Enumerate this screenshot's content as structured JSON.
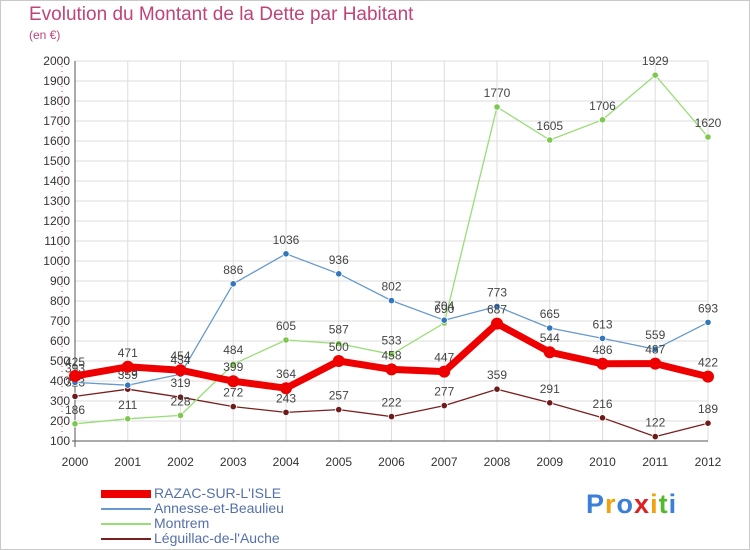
{
  "colors": {
    "title": "#c0437a",
    "grid": "#dddddd",
    "axis": "#555555"
  },
  "chart_data": {
    "type": "line",
    "title": "Evolution du Montant de la Dette par Habitant",
    "subtitle": "(en €)",
    "xlabel": "",
    "ylabel": "",
    "ylim": [
      100,
      2000
    ],
    "yticks": [
      100,
      200,
      300,
      400,
      500,
      600,
      700,
      800,
      900,
      1000,
      1100,
      1200,
      1300,
      1400,
      1500,
      1600,
      1700,
      1800,
      1900,
      2000
    ],
    "grid": true,
    "legend": "bottom-left",
    "x": [
      "2000",
      "2001",
      "2002",
      "2003",
      "2004",
      "2005",
      "2006",
      "2007",
      "2008",
      "2009",
      "2010",
      "2011",
      "2012"
    ],
    "series": [
      {
        "name": "Léguillac-de-l'Auche",
        "color": "#7a1f1f",
        "width": 1.3,
        "marker": "#6e1a1a",
        "values": [
          323,
          359,
          319,
          272,
          243,
          257,
          222,
          277,
          359,
          291,
          216,
          122,
          189
        ]
      },
      {
        "name": "Montrem",
        "color": "#99dd77",
        "width": 1.3,
        "marker": "#7ec850",
        "values": [
          186,
          211,
          228,
          484,
          605,
          587,
          533,
          690,
          1770,
          1605,
          1706,
          1929,
          1620
        ]
      },
      {
        "name": "Annesse-et-Beaulieu",
        "color": "#6699cc",
        "width": 1.3,
        "marker": "#3377bb",
        "values": [
          393,
          379,
          434,
          886,
          1036,
          936,
          802,
          704,
          773,
          665,
          613,
          559,
          693
        ]
      },
      {
        "name": "RAZAC-SUR-L'ISLE",
        "color": "#ee0000",
        "width": 7,
        "marker": "#ee0000",
        "values": [
          425,
          471,
          454,
          399,
          364,
          500,
          458,
          447,
          687,
          544,
          486,
          487,
          422
        ]
      }
    ]
  },
  "legend": {
    "items": [
      {
        "label": "RAZAC-SUR-L'ISLE",
        "color": "#ee0000",
        "width": 8
      },
      {
        "label": "Annesse-et-Beaulieu",
        "color": "#6699cc",
        "width": 2
      },
      {
        "label": "Montrem",
        "color": "#99dd77",
        "width": 2
      },
      {
        "label": "Léguillac-de-l'Auche",
        "color": "#7a1f1f",
        "width": 2
      }
    ]
  },
  "logo": {
    "text": "Proxiti",
    "letters": [
      {
        "ch": "P",
        "color": "#3b7fd8"
      },
      {
        "ch": "r",
        "color": "#f2a20c"
      },
      {
        "ch": "o",
        "color": "#3b7fd8"
      },
      {
        "ch": "x",
        "color": "#e02020"
      },
      {
        "ch": "i",
        "color": "#f2a20c"
      },
      {
        "ch": "t",
        "color": "#55b92c"
      },
      {
        "ch": "i",
        "color": "#3b7fd8"
      }
    ]
  }
}
